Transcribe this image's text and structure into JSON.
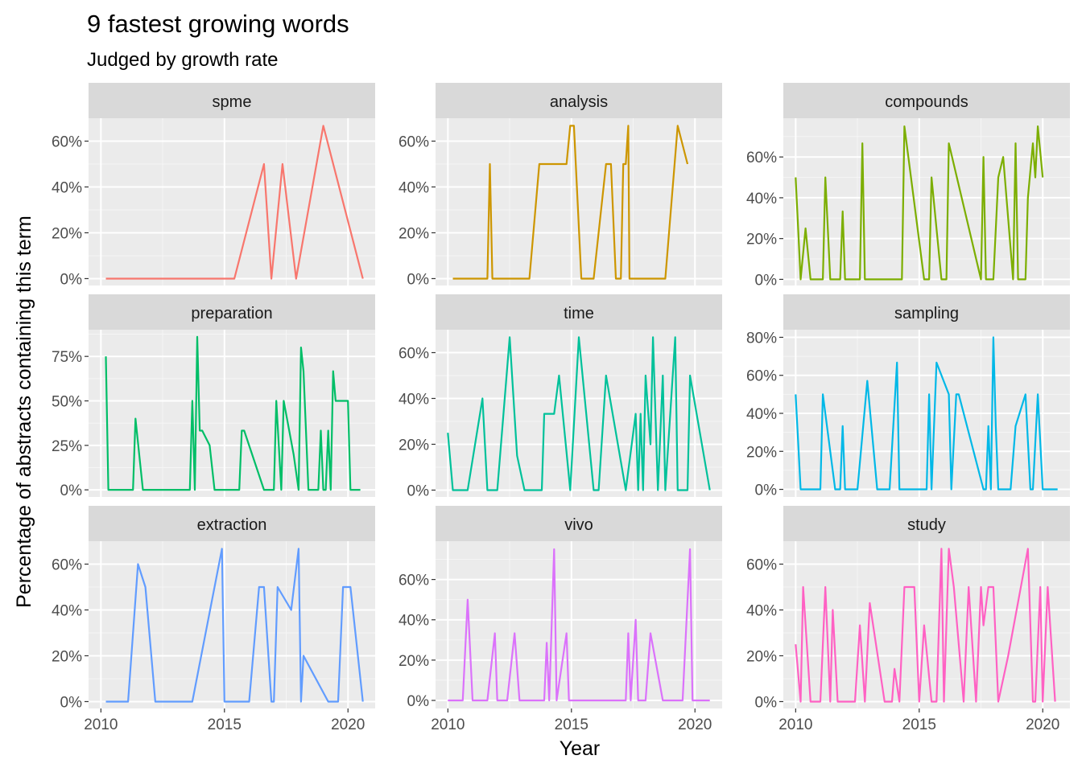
{
  "chart_data": {
    "type": "line",
    "title": "9 fastest growing words",
    "subtitle": "Judged by growth rate",
    "xlabel": "Year",
    "ylabel": "Percentage of abstracts containing this term",
    "xlim": [
      2009.5,
      2021.1
    ],
    "x_ticks": [
      2010,
      2015,
      2020
    ],
    "x_tick_labels": [
      "2010",
      "2015",
      "2020"
    ],
    "panels": [
      {
        "word": "spme",
        "color": "#F8766D",
        "ylim": [
          -0.03,
          0.7
        ],
        "y_ticks": [
          0,
          0.2,
          0.4,
          0.6
        ],
        "y_tick_labels": [
          "0%",
          "20%",
          "40%",
          "60%"
        ],
        "x": [
          2010.2,
          2015.4,
          2016.6,
          2016.9,
          2017.35,
          2017.9,
          2019.0,
          2020.6
        ],
        "y": [
          0,
          0,
          0.5,
          0,
          0.5,
          0,
          0.667,
          0
        ]
      },
      {
        "word": "analysis",
        "color": "#CD9600",
        "ylim": [
          -0.03,
          0.7
        ],
        "y_ticks": [
          0,
          0.2,
          0.4,
          0.6
        ],
        "y_tick_labels": [
          "0%",
          "20%",
          "40%",
          "60%"
        ],
        "x": [
          2010.2,
          2011.6,
          2011.7,
          2011.8,
          2013.3,
          2013.7,
          2014.8,
          2014.95,
          2015.1,
          2015.4,
          2015.9,
          2016.4,
          2016.6,
          2016.8,
          2017.0,
          2017.1,
          2017.2,
          2017.3,
          2017.35,
          2017.5,
          2018.8,
          2019.3,
          2019.7
        ],
        "y": [
          0,
          0,
          0.5,
          0,
          0,
          0.5,
          0.5,
          0.667,
          0.667,
          0,
          0,
          0.5,
          0.5,
          0,
          0,
          0.5,
          0.5,
          0.667,
          0,
          0,
          0,
          0.667,
          0.5
        ]
      },
      {
        "word": "compounds",
        "color": "#7CAE00",
        "ylim": [
          -0.03,
          0.79
        ],
        "y_ticks": [
          0,
          0.2,
          0.4,
          0.6
        ],
        "y_tick_labels": [
          "0%",
          "20%",
          "40%",
          "60%"
        ],
        "x": [
          2010.0,
          2010.2,
          2010.4,
          2010.6,
          2011.1,
          2011.2,
          2011.4,
          2011.8,
          2011.9,
          2012.0,
          2012.6,
          2012.7,
          2012.8,
          2014.3,
          2014.4,
          2015.2,
          2015.4,
          2015.5,
          2015.9,
          2016.1,
          2016.2,
          2017.5,
          2017.6,
          2017.7,
          2018.0,
          2018.2,
          2018.4,
          2018.8,
          2018.9,
          2019.0,
          2019.3,
          2019.4,
          2019.6,
          2019.7,
          2019.8,
          2020.0
        ],
        "y": [
          0.5,
          0,
          0.25,
          0,
          0,
          0.5,
          0,
          0,
          0.333,
          0,
          0,
          0.667,
          0,
          0,
          0.75,
          0,
          0,
          0.5,
          0,
          0,
          0.667,
          0,
          0.6,
          0,
          0,
          0.5,
          0.6,
          0,
          0.667,
          0,
          0,
          0.4,
          0.667,
          0.5,
          0.75,
          0.5
        ]
      },
      {
        "word": "preparation",
        "color": "#00BE67",
        "ylim": [
          -0.04,
          0.9
        ],
        "y_ticks": [
          0,
          0.25,
          0.5,
          0.75
        ],
        "y_tick_labels": [
          "0%",
          "25%",
          "50%",
          "75%"
        ],
        "x": [
          2010.2,
          2010.3,
          2011.3,
          2011.4,
          2011.7,
          2013.6,
          2013.7,
          2013.8,
          2013.9,
          2014.0,
          2014.1,
          2014.4,
          2014.6,
          2015.6,
          2015.7,
          2015.8,
          2016.6,
          2017.0,
          2017.1,
          2017.3,
          2017.4,
          2017.8,
          2018.0,
          2018.1,
          2018.2,
          2018.4,
          2018.8,
          2018.9,
          2019.0,
          2019.1,
          2019.2,
          2019.3,
          2019.4,
          2019.5,
          2019.6,
          2020.0,
          2020.1,
          2020.5
        ],
        "y": [
          0.75,
          0,
          0,
          0.4,
          0,
          0,
          0.5,
          0,
          0.86,
          0.333,
          0.333,
          0.25,
          0,
          0,
          0.333,
          0.333,
          0,
          0,
          0.5,
          0,
          0.5,
          0.2,
          0,
          0.8,
          0.667,
          0,
          0,
          0.333,
          0,
          0,
          0.333,
          0,
          0.667,
          0.5,
          0.5,
          0.5,
          0,
          0
        ]
      },
      {
        "word": "time",
        "color": "#00C19A",
        "ylim": [
          -0.03,
          0.7
        ],
        "y_ticks": [
          0,
          0.2,
          0.4,
          0.6
        ],
        "y_tick_labels": [
          "0%",
          "20%",
          "40%",
          "60%"
        ],
        "x": [
          2010.0,
          2010.2,
          2010.8,
          2011.4,
          2011.6,
          2012.0,
          2012.5,
          2012.8,
          2013.1,
          2013.8,
          2013.9,
          2014.1,
          2014.3,
          2014.5,
          2014.95,
          2015.3,
          2015.9,
          2016.1,
          2016.4,
          2017.2,
          2017.6,
          2017.7,
          2017.8,
          2017.9,
          2018.0,
          2018.2,
          2018.3,
          2018.5,
          2018.7,
          2018.8,
          2019.2,
          2019.3,
          2019.7,
          2019.8,
          2020.6
        ],
        "y": [
          0.25,
          0,
          0,
          0.4,
          0,
          0,
          0.667,
          0.15,
          0,
          0,
          0.333,
          0.333,
          0.333,
          0.5,
          0,
          0.667,
          0,
          0,
          0.5,
          0,
          0.333,
          0,
          0.333,
          0,
          0.5,
          0.2,
          0.667,
          0,
          0.5,
          0,
          0.667,
          0,
          0,
          0.5,
          0
        ]
      },
      {
        "word": "sampling",
        "color": "#00B8E7",
        "ylim": [
          -0.04,
          0.84
        ],
        "y_ticks": [
          0,
          0.2,
          0.4,
          0.6,
          0.8
        ],
        "y_tick_labels": [
          "0%",
          "20%",
          "40%",
          "60%",
          "80%"
        ],
        "x": [
          2010.0,
          2010.2,
          2011.0,
          2011.1,
          2011.6,
          2011.8,
          2011.9,
          2012.0,
          2012.5,
          2012.9,
          2013.3,
          2013.8,
          2014.1,
          2014.2,
          2015.3,
          2015.4,
          2015.5,
          2015.7,
          2016.2,
          2016.3,
          2016.5,
          2016.6,
          2017.6,
          2017.7,
          2017.8,
          2017.9,
          2018.0,
          2018.1,
          2018.2,
          2018.7,
          2018.9,
          2019.3,
          2019.5,
          2019.6,
          2019.8,
          2020.0,
          2020.3,
          2020.6
        ],
        "y": [
          0.5,
          0,
          0,
          0.5,
          0,
          0,
          0.333,
          0,
          0,
          0.571,
          0,
          0,
          0.667,
          0,
          0,
          0.5,
          0,
          0.667,
          0.5,
          0,
          0.5,
          0.5,
          0,
          0,
          0.333,
          0,
          0.8,
          0.333,
          0,
          0,
          0.333,
          0.5,
          0,
          0,
          0.5,
          0,
          0,
          0
        ]
      },
      {
        "word": "extraction",
        "color": "#619CFF",
        "ylim": [
          -0.03,
          0.7
        ],
        "y_ticks": [
          0,
          0.2,
          0.4,
          0.6
        ],
        "y_tick_labels": [
          "0%",
          "20%",
          "40%",
          "60%"
        ],
        "x": [
          2010.2,
          2011.1,
          2011.5,
          2011.8,
          2012.2,
          2013.7,
          2014.9,
          2015.0,
          2016.0,
          2016.4,
          2016.6,
          2016.9,
          2017.0,
          2017.15,
          2017.7,
          2018.0,
          2018.1,
          2018.2,
          2019.2,
          2019.6,
          2019.8,
          2020.0,
          2020.1,
          2020.6
        ],
        "y": [
          0,
          0,
          0.6,
          0.5,
          0,
          0,
          0.667,
          0,
          0,
          0.5,
          0.5,
          0,
          0,
          0.5,
          0.4,
          0.667,
          0,
          0.2,
          0,
          0,
          0.5,
          0.5,
          0.5,
          0
        ]
      },
      {
        "word": "vivo",
        "color": "#DB72FB",
        "ylim": [
          -0.04,
          0.79
        ],
        "y_ticks": [
          0,
          0.2,
          0.4,
          0.6
        ],
        "y_tick_labels": [
          "0%",
          "20%",
          "40%",
          "60%"
        ],
        "x": [
          2010.0,
          2010.6,
          2010.8,
          2011.0,
          2011.6,
          2011.9,
          2012.0,
          2012.4,
          2012.7,
          2012.9,
          2013.9,
          2014.0,
          2014.1,
          2014.3,
          2014.4,
          2014.8,
          2014.9,
          2015.0,
          2017.2,
          2017.3,
          2017.4,
          2017.6,
          2017.7,
          2018.0,
          2018.2,
          2018.7,
          2019.5,
          2019.8,
          2019.9,
          2020.6
        ],
        "y": [
          0,
          0,
          0.5,
          0,
          0,
          0.333,
          0,
          0,
          0.333,
          0,
          0,
          0.286,
          0,
          0.75,
          0,
          0.333,
          0,
          0,
          0,
          0.333,
          0,
          0.4,
          0,
          0,
          0.333,
          0,
          0,
          0.75,
          0,
          0
        ]
      },
      {
        "word": "study",
        "color": "#FF61C3",
        "ylim": [
          -0.03,
          0.7
        ],
        "y_ticks": [
          0,
          0.2,
          0.4,
          0.6
        ],
        "y_tick_labels": [
          "0%",
          "20%",
          "40%",
          "60%"
        ],
        "x": [
          2010.0,
          2010.2,
          2010.3,
          2010.6,
          2011.0,
          2011.2,
          2011.4,
          2011.5,
          2011.7,
          2012.4,
          2012.6,
          2012.8,
          2013.0,
          2013.6,
          2013.9,
          2014.0,
          2014.2,
          2014.4,
          2014.8,
          2015.0,
          2015.2,
          2015.5,
          2015.7,
          2015.9,
          2016.0,
          2016.2,
          2016.4,
          2016.8,
          2017.0,
          2017.3,
          2017.5,
          2017.6,
          2017.8,
          2018.0,
          2018.2,
          2018.6,
          2019.4,
          2019.6,
          2019.7,
          2019.9,
          2020.0,
          2020.2,
          2020.5
        ],
        "y": [
          0.25,
          0,
          0.5,
          0,
          0,
          0.5,
          0,
          0.4,
          0,
          0,
          0.333,
          0,
          0.43,
          0,
          0,
          0.143,
          0,
          0.5,
          0.5,
          0,
          0.333,
          0,
          0,
          0.667,
          0,
          0.667,
          0.5,
          0,
          0.5,
          0,
          0.5,
          0.333,
          0.5,
          0.5,
          0,
          0.2,
          0.667,
          0,
          0,
          0.5,
          0,
          0.5,
          0
        ]
      }
    ]
  }
}
